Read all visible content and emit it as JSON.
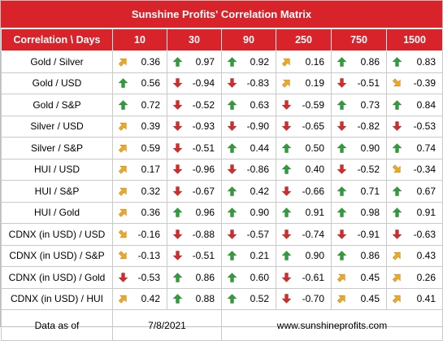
{
  "title": "Sunshine Profits' Correlation Matrix",
  "header": {
    "corner": "Correlation \\ Days",
    "columns": [
      "10",
      "30",
      "90",
      "250",
      "750",
      "1500"
    ]
  },
  "rows": [
    {
      "label": "Gold / Silver",
      "cells": [
        {
          "v": "0.36",
          "a": "up-right"
        },
        {
          "v": "0.97",
          "a": "up"
        },
        {
          "v": "0.92",
          "a": "up"
        },
        {
          "v": "0.16",
          "a": "up-right"
        },
        {
          "v": "0.86",
          "a": "up"
        },
        {
          "v": "0.83",
          "a": "up"
        }
      ]
    },
    {
      "label": "Gold / USD",
      "cells": [
        {
          "v": "0.56",
          "a": "up"
        },
        {
          "v": "-0.94",
          "a": "down"
        },
        {
          "v": "-0.83",
          "a": "down"
        },
        {
          "v": "0.19",
          "a": "up-right"
        },
        {
          "v": "-0.51",
          "a": "down"
        },
        {
          "v": "-0.39",
          "a": "down-right"
        }
      ]
    },
    {
      "label": "Gold / S&P",
      "cells": [
        {
          "v": "0.72",
          "a": "up"
        },
        {
          "v": "-0.52",
          "a": "down"
        },
        {
          "v": "0.63",
          "a": "up"
        },
        {
          "v": "-0.59",
          "a": "down"
        },
        {
          "v": "0.73",
          "a": "up"
        },
        {
          "v": "0.84",
          "a": "up"
        }
      ]
    },
    {
      "label": "Silver / USD",
      "cells": [
        {
          "v": "0.39",
          "a": "up-right"
        },
        {
          "v": "-0.93",
          "a": "down"
        },
        {
          "v": "-0.90",
          "a": "down"
        },
        {
          "v": "-0.65",
          "a": "down"
        },
        {
          "v": "-0.82",
          "a": "down"
        },
        {
          "v": "-0.53",
          "a": "down"
        }
      ]
    },
    {
      "label": "Silver / S&P",
      "cells": [
        {
          "v": "0.59",
          "a": "up-right"
        },
        {
          "v": "-0.51",
          "a": "down"
        },
        {
          "v": "0.44",
          "a": "up"
        },
        {
          "v": "0.50",
          "a": "up"
        },
        {
          "v": "0.90",
          "a": "up"
        },
        {
          "v": "0.74",
          "a": "up"
        }
      ]
    },
    {
      "label": "HUI / USD",
      "cells": [
        {
          "v": "0.17",
          "a": "up-right"
        },
        {
          "v": "-0.96",
          "a": "down"
        },
        {
          "v": "-0.86",
          "a": "down"
        },
        {
          "v": "0.40",
          "a": "up"
        },
        {
          "v": "-0.52",
          "a": "down"
        },
        {
          "v": "-0.34",
          "a": "down-right"
        }
      ]
    },
    {
      "label": "HUI / S&P",
      "cells": [
        {
          "v": "0.32",
          "a": "up-right"
        },
        {
          "v": "-0.67",
          "a": "down"
        },
        {
          "v": "0.42",
          "a": "up"
        },
        {
          "v": "-0.66",
          "a": "down"
        },
        {
          "v": "0.71",
          "a": "up"
        },
        {
          "v": "0.67",
          "a": "up"
        }
      ]
    },
    {
      "label": "HUI / Gold",
      "cells": [
        {
          "v": "0.36",
          "a": "up-right"
        },
        {
          "v": "0.96",
          "a": "up"
        },
        {
          "v": "0.90",
          "a": "up"
        },
        {
          "v": "0.91",
          "a": "up"
        },
        {
          "v": "0.98",
          "a": "up"
        },
        {
          "v": "0.91",
          "a": "up"
        }
      ]
    },
    {
      "label": "CDNX (in USD) / USD",
      "cells": [
        {
          "v": "-0.16",
          "a": "down-right"
        },
        {
          "v": "-0.88",
          "a": "down"
        },
        {
          "v": "-0.57",
          "a": "down"
        },
        {
          "v": "-0.74",
          "a": "down"
        },
        {
          "v": "-0.91",
          "a": "down"
        },
        {
          "v": "-0.63",
          "a": "down"
        }
      ]
    },
    {
      "label": "CDNX (in USD) / S&P",
      "cells": [
        {
          "v": "-0.13",
          "a": "down-right"
        },
        {
          "v": "-0.51",
          "a": "down"
        },
        {
          "v": "0.21",
          "a": "up"
        },
        {
          "v": "0.90",
          "a": "up"
        },
        {
          "v": "0.86",
          "a": "up"
        },
        {
          "v": "0.43",
          "a": "up-right"
        }
      ]
    },
    {
      "label": "CDNX (in USD) / Gold",
      "cells": [
        {
          "v": "-0.53",
          "a": "down"
        },
        {
          "v": "0.86",
          "a": "up"
        },
        {
          "v": "0.60",
          "a": "up"
        },
        {
          "v": "-0.61",
          "a": "down"
        },
        {
          "v": "0.45",
          "a": "up-right"
        },
        {
          "v": "0.26",
          "a": "up-right"
        }
      ]
    },
    {
      "label": "CDNX (in USD) / HUI",
      "cells": [
        {
          "v": "0.42",
          "a": "up-right"
        },
        {
          "v": "0.88",
          "a": "up"
        },
        {
          "v": "0.52",
          "a": "up"
        },
        {
          "v": "-0.70",
          "a": "down"
        },
        {
          "v": "0.45",
          "a": "up-right"
        },
        {
          "v": "0.41",
          "a": "up-right"
        }
      ]
    }
  ],
  "footer": {
    "label": "Data as of",
    "date": "7/8/2021",
    "website": "www.sunshineprofits.com"
  },
  "colors": {
    "header_bg": "#d8232b",
    "arrow_up": "#2e9e3a",
    "arrow_down": "#d62a2a",
    "arrow_diag": "#f2a81d"
  }
}
